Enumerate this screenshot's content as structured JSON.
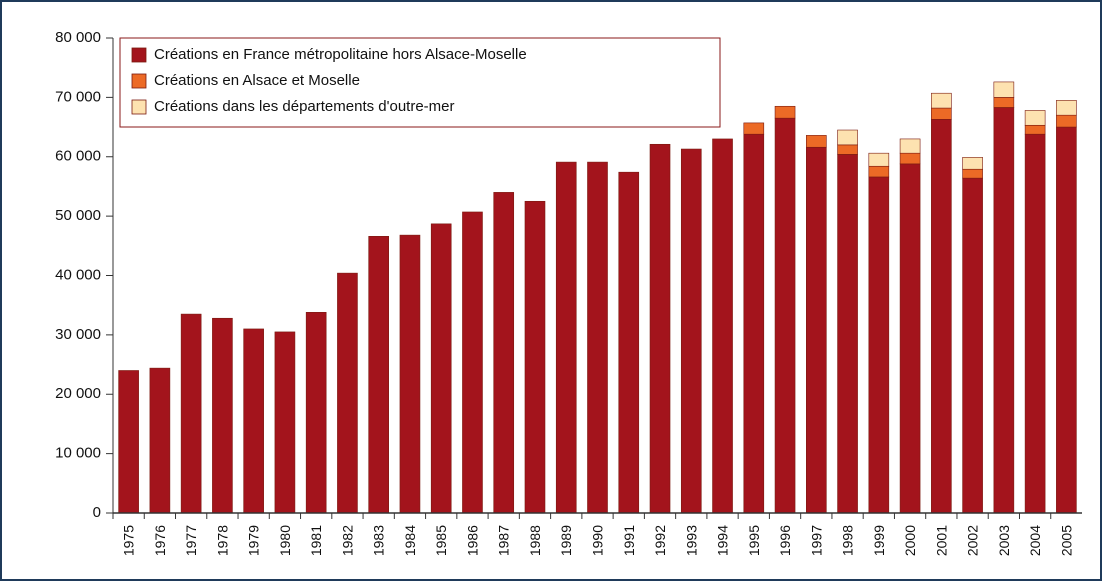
{
  "chart_data": {
    "type": "stacked_bar",
    "categories": [
      "1975",
      "1976",
      "1977",
      "1978",
      "1979",
      "1980",
      "1981",
      "1982",
      "1983",
      "1984",
      "1985",
      "1986",
      "1987",
      "1988",
      "1989",
      "1990",
      "1991",
      "1992",
      "1993",
      "1994",
      "1995",
      "1996",
      "1997",
      "1998",
      "1999",
      "2000",
      "2001",
      "2002",
      "2003",
      "2004",
      "2005"
    ],
    "series": [
      {
        "name": "Créations en France métropolitaine hors Alsace-Moselle",
        "color": "#a3141c",
        "values": [
          24000,
          24400,
          33500,
          32800,
          31000,
          30500,
          33800,
          40400,
          46600,
          46800,
          48700,
          50700,
          54000,
          52500,
          59100,
          59100,
          57400,
          62100,
          61300,
          63000,
          63800,
          66500,
          61600,
          60400,
          56600,
          58800,
          66300,
          56400,
          68300,
          63800,
          65000
        ]
      },
      {
        "name": "Créations en Alsace et Moselle",
        "color": "#ec6a26",
        "values": [
          null,
          null,
          null,
          null,
          null,
          null,
          null,
          null,
          null,
          null,
          null,
          null,
          null,
          null,
          null,
          null,
          null,
          null,
          null,
          null,
          1900,
          2000,
          2000,
          1600,
          1800,
          1800,
          1900,
          1500,
          1700,
          1500,
          2000
        ]
      },
      {
        "name": "Créations dans les départements d'outre-mer",
        "color": "#fde2b0",
        "values": [
          null,
          null,
          null,
          null,
          null,
          null,
          null,
          null,
          null,
          null,
          null,
          null,
          null,
          null,
          null,
          null,
          null,
          null,
          null,
          null,
          null,
          null,
          null,
          2500,
          2200,
          2400,
          2500,
          2000,
          2600,
          2500,
          2500
        ]
      }
    ],
    "ylim": [
      0,
      80000
    ],
    "yticks": [
      0,
      {
        "value": 10000,
        "label": "10 000"
      },
      {
        "value": 20000,
        "label": "20 000"
      },
      {
        "value": 30000,
        "label": "30 000"
      },
      {
        "value": 40000,
        "label": "40 000"
      },
      {
        "value": 50000,
        "label": "50 000"
      },
      {
        "value": 60000,
        "label": "60 000"
      },
      {
        "value": 70000,
        "label": "70 000"
      },
      {
        "value": 80000,
        "label": "80 000"
      }
    ],
    "legend": "top-left"
  }
}
